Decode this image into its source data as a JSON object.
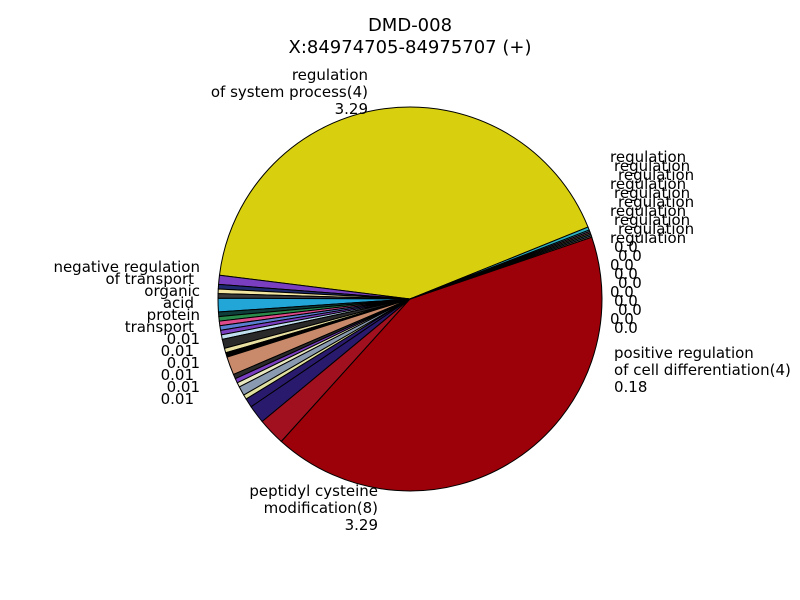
{
  "chart_data": {
    "type": "pie",
    "title": "DMD-008",
    "subtitle": "X:84974705-84975707 (+)",
    "slices": [
      {
        "label": "regulation of system process(4)",
        "value": 3.29,
        "color": "#d8d00f",
        "label_shown": true
      },
      {
        "label": "regulation",
        "value": 0.06,
        "color": "#7a3fc0",
        "label_shown": true
      },
      {
        "label": "regulation",
        "value": 0.03,
        "color": "#1f2a6e",
        "label_shown": true
      },
      {
        "label": "regulation",
        "value": 0.03,
        "color": "#f2e6a0",
        "label_shown": true
      },
      {
        "label": "regulation",
        "value": 0.03,
        "color": "#3a3a3a",
        "label_shown": true
      },
      {
        "label": "regulation",
        "value": 0.09,
        "color": "#22a6d8",
        "label_shown": true
      },
      {
        "label": "regulation",
        "value": 0.03,
        "color": "#0e3d3a",
        "label_shown": true
      },
      {
        "label": "regulation",
        "value": 0.03,
        "color": "#2a8a4a",
        "label_shown": true
      },
      {
        "label": "regulation",
        "value": 0.03,
        "color": "#e04a8a",
        "label_shown": true
      },
      {
        "label": "regulation",
        "value": 0.03,
        "color": "#5a7fd0",
        "label_shown": true
      },
      {
        "label": "regulation",
        "value": 0.03,
        "color": "#7a3fc0",
        "label_shown": true
      },
      {
        "label": "regulation",
        "value": 0.03,
        "color": "#c0e0f0",
        "label_shown": true
      },
      {
        "label": "regulation",
        "value": 0.06,
        "color": "#2a2a2a",
        "label_shown": true
      },
      {
        "label": "regulation",
        "value": 0.03,
        "color": "#e8e0a0",
        "label_shown": true
      },
      {
        "label": "regulation",
        "value": 0.03,
        "color": "#000000",
        "label_shown": true
      },
      {
        "label": "regulation",
        "value": 0.12,
        "color": "#c88a6a",
        "label_shown": true
      },
      {
        "label": "regulation",
        "value": 0.03,
        "color": "#2a2a2a",
        "label_shown": true
      },
      {
        "label": "regulation",
        "value": 0.03,
        "color": "#7a3fc0",
        "label_shown": true
      },
      {
        "label": "regulation",
        "value": 0.03,
        "color": "#e8e8c0",
        "label_shown": true
      },
      {
        "label": "regulation",
        "value": 0.06,
        "color": "#8a9ab0",
        "label_shown": true
      },
      {
        "label": "regulation",
        "value": 0.03,
        "color": "#e0e0a0",
        "label_shown": true
      },
      {
        "label": "regulation",
        "value": 0.06,
        "color": "#2a1a6e",
        "label_shown": true
      },
      {
        "label": "regulation",
        "value": 0.12,
        "color": "#2a1a6e",
        "label_shown": true
      },
      {
        "label": "positive regulation of cell differentiation(4)",
        "value": 0.18,
        "color": "#a0101f",
        "label_shown": true
      },
      {
        "label": "peptidyl cysteine modification(8)",
        "value": 3.29,
        "color": "#9c0008",
        "label_shown": true
      },
      {
        "label": "transport",
        "value": 0.01,
        "color": "#8a7a5a",
        "label_shown": true
      },
      {
        "label": "protein",
        "value": 0.01,
        "color": "#4a6a9a",
        "label_shown": true
      },
      {
        "label": "acid",
        "value": 0.01,
        "color": "#6a8a4a",
        "label_shown": true
      },
      {
        "label": "organic",
        "value": 0.01,
        "color": "#9a4a6a",
        "label_shown": true
      },
      {
        "label": "negative regulation of transport",
        "value": 0.01,
        "color": "#4a9ab0",
        "label_shown": true
      },
      {
        "label": "regulation",
        "value": 0.02,
        "color": "#2ab0c0",
        "label_shown": true
      }
    ],
    "visible_texts": {
      "top_label": [
        "regulation",
        "of system process(4)",
        "3.29"
      ],
      "bottom_label": [
        "peptidyl cysteine",
        "modification(8)",
        "3.29"
      ],
      "right_bottom_label": [
        "positive regulation",
        "of cell differentiation(4)",
        "0.18"
      ],
      "right_cluster": [
        "regulation",
        "regulation",
        "regulation",
        "regulation",
        "regulation",
        "regulation",
        "regulation",
        "regulation",
        "regulation",
        "regulation",
        "0.0",
        "0.0",
        "0.0",
        "0.0",
        "0.0",
        "0.0",
        "0.0",
        "0.0",
        "0.0",
        "0.0"
      ],
      "left_cluster": [
        "negative regulation",
        "of transport",
        "organic",
        "acid",
        "protein",
        "transport",
        "0.01",
        "0.01",
        "0.01",
        "0.01",
        "0.01",
        "0.01"
      ]
    }
  }
}
